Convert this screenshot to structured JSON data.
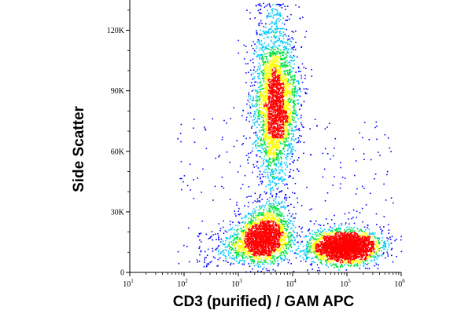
{
  "chart_data": {
    "type": "scatter",
    "title": "",
    "xlabel": "CD3 (purified) / GAM APC",
    "ylabel": "Side Scatter",
    "x_scale": "log",
    "xlim": [
      10,
      1000000
    ],
    "ylim": [
      0,
      135000
    ],
    "grid": false,
    "legend": "none",
    "coloring": "density (blue → cyan → green → yellow → red)",
    "x_ticks": [
      {
        "base": "10",
        "exp": "1",
        "value": 10
      },
      {
        "base": "10",
        "exp": "2",
        "value": 100
      },
      {
        "base": "10",
        "exp": "3",
        "value": 1000
      },
      {
        "base": "10",
        "exp": "4",
        "value": 10000
      },
      {
        "base": "10",
        "exp": "5",
        "value": 100000
      },
      {
        "base": "10",
        "exp": "6",
        "value": 1000000
      }
    ],
    "y_ticks": [
      {
        "label": "0",
        "value": 0
      },
      {
        "label": "30K",
        "value": 30000
      },
      {
        "label": "60K",
        "value": 60000
      },
      {
        "label": "90K",
        "value": 90000
      },
      {
        "label": "120K",
        "value": 120000
      }
    ],
    "populations": [
      {
        "x_center": 4500,
        "y_center": 80000,
        "density": "high",
        "shape": "vertical elongated, spans y 5K to 135K"
      },
      {
        "x_center": 3500,
        "y_center": 15000,
        "density": "high",
        "shape": "dense base of vertical population"
      },
      {
        "x_center": 85000,
        "y_center": 12000,
        "density": "high",
        "shape": "horizontal ellipse, x 10^4 to 5x10^5"
      }
    ],
    "colors": {
      "low": "#0000ff",
      "mid_low": "#00c8ff",
      "mid": "#00e040",
      "mid_high": "#ffff00",
      "high": "#ff0000"
    }
  }
}
